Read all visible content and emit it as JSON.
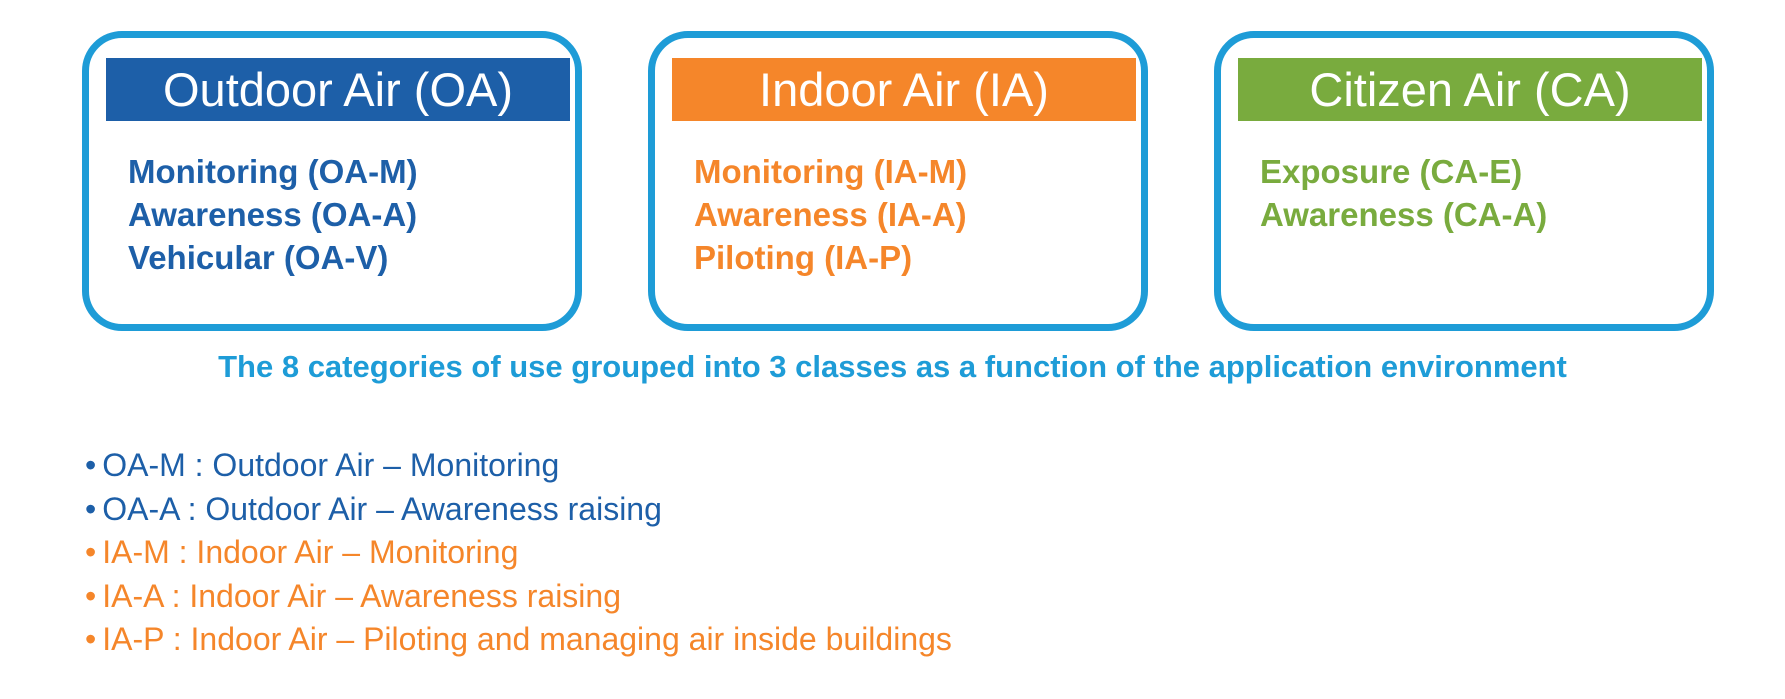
{
  "colors": {
    "border": "#1e9cd7",
    "outdoor": "#1d5fa8",
    "indoor": "#f5862a",
    "citizen": "#79ab3e",
    "caption": "#1e9cd7"
  },
  "classes": [
    {
      "title": "Outdoor Air (OA)",
      "color_key": "outdoor",
      "items": [
        "Monitoring (OA-M)",
        "Awareness (OA-A)",
        "Vehicular (OA-V)"
      ]
    },
    {
      "title": "Indoor Air (IA)",
      "color_key": "indoor",
      "items": [
        "Monitoring (IA-M)",
        "Awareness (IA-A)",
        "Piloting (IA-P)"
      ]
    },
    {
      "title": "Citizen Air (CA)",
      "color_key": "citizen",
      "items": [
        "Exposure (CA-E)",
        "Awareness (CA-A)"
      ]
    }
  ],
  "caption": "The 8 categories of use grouped into 3 classes as a function of the application environment",
  "legend": {
    "bullet": "•",
    "items": [
      {
        "text": "OA-M : Outdoor Air – Monitoring",
        "color_key": "outdoor"
      },
      {
        "text": "OA-A : Outdoor Air – Awareness raising",
        "color_key": "outdoor"
      },
      {
        "text": "IA-M : Indoor Air – Monitoring",
        "color_key": "indoor"
      },
      {
        "text": "IA-A : Indoor Air – Awareness raising",
        "color_key": "indoor"
      },
      {
        "text": "IA-P : Indoor Air – Piloting and managing air inside buildings",
        "color_key": "indoor"
      }
    ]
  }
}
